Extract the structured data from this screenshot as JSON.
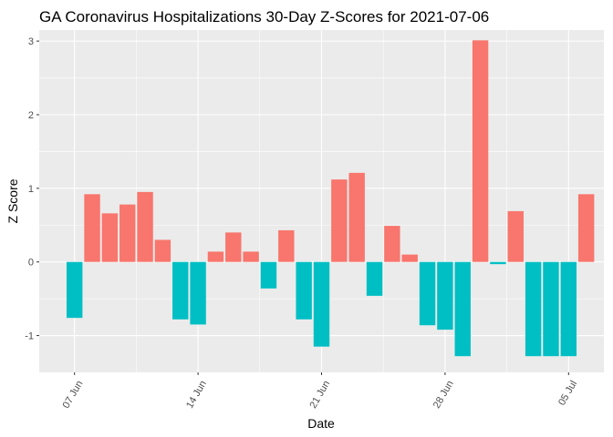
{
  "chart_data": {
    "type": "bar",
    "title": "GA Coronavirus Hospitalizations 30-Day Z-Scores for 2021-07-06",
    "xlabel": "Date",
    "ylabel": "Z Score",
    "ylim": [
      -1.5,
      3.15
    ],
    "yticks": [
      -1,
      0,
      1,
      2,
      3
    ],
    "xlim": [
      "2021-06-05",
      "2021-07-07"
    ],
    "xticks": [
      {
        "date": "2021-06-07",
        "label": "07 Jun"
      },
      {
        "date": "2021-06-14",
        "label": "14 Jun"
      },
      {
        "date": "2021-06-21",
        "label": "21 Jun"
      },
      {
        "date": "2021-06-28",
        "label": "28 Jun"
      },
      {
        "date": "2021-07-05",
        "label": "05 Jul"
      }
    ],
    "grid": true,
    "legend": "none",
    "colors": {
      "positive": "#F8766D",
      "negative": "#00BFC4",
      "panel": "#EBEBEB",
      "grid": "#FFFFFF"
    },
    "x": [
      "2021-06-07",
      "2021-06-08",
      "2021-06-09",
      "2021-06-10",
      "2021-06-11",
      "2021-06-12",
      "2021-06-13",
      "2021-06-14",
      "2021-06-15",
      "2021-06-16",
      "2021-06-17",
      "2021-06-18",
      "2021-06-19",
      "2021-06-20",
      "2021-06-21",
      "2021-06-22",
      "2021-06-23",
      "2021-06-24",
      "2021-06-25",
      "2021-06-26",
      "2021-06-27",
      "2021-06-28",
      "2021-06-29",
      "2021-06-30",
      "2021-07-01",
      "2021-07-02",
      "2021-07-03",
      "2021-07-04",
      "2021-07-05",
      "2021-07-06"
    ],
    "values": [
      -0.76,
      0.92,
      0.66,
      0.78,
      0.95,
      0.3,
      -0.78,
      -0.85,
      0.14,
      0.4,
      0.14,
      -0.36,
      0.43,
      -0.78,
      -1.15,
      1.12,
      1.21,
      -0.46,
      0.49,
      0.1,
      -0.86,
      -0.92,
      -1.28,
      3.01,
      -0.03,
      0.69,
      -1.28,
      -1.28,
      -1.28,
      0.92
    ]
  }
}
